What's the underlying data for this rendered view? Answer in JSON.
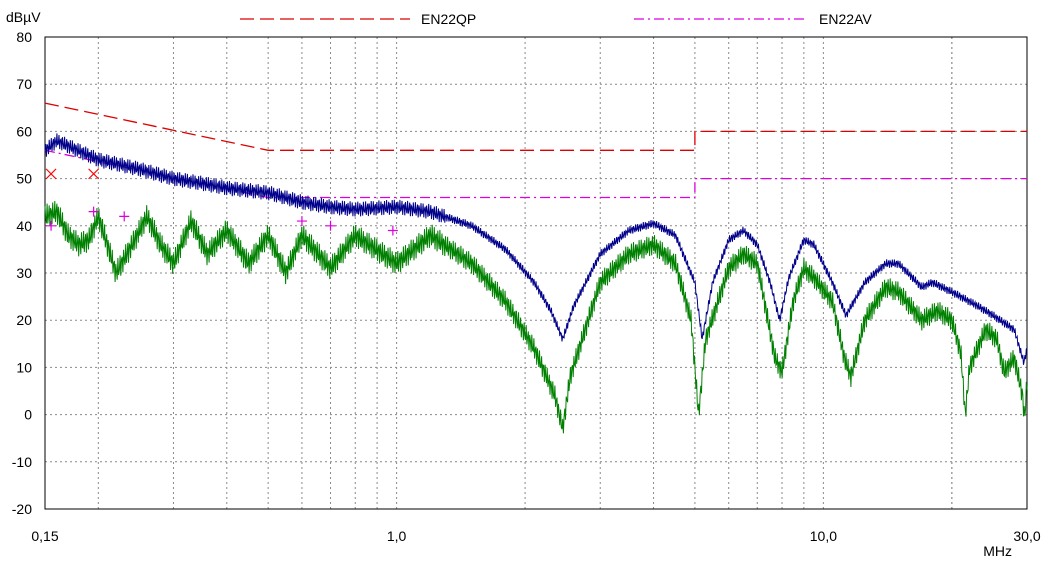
{
  "chart_data": {
    "type": "line",
    "ylabel": "dBµV",
    "xlabel": "MHz",
    "x_scale": "log",
    "xlim": [
      0.15,
      30
    ],
    "ylim": [
      -20,
      80
    ],
    "grid": true,
    "legend_placement": "top",
    "x_ticks": [
      {
        "value": 0.15,
        "label": "0,15"
      },
      {
        "value": 1,
        "label": "1,0"
      },
      {
        "value": 10,
        "label": "10,0"
      },
      {
        "value": 30,
        "label": "30,0"
      }
    ],
    "y_ticks": [
      {
        "value": 80,
        "label": "80"
      },
      {
        "value": 70,
        "label": "70"
      },
      {
        "value": 60,
        "label": "60"
      },
      {
        "value": 50,
        "label": "50"
      },
      {
        "value": 40,
        "label": "40"
      },
      {
        "value": 30,
        "label": "30"
      },
      {
        "value": 20,
        "label": "20"
      },
      {
        "value": 10,
        "label": "10"
      },
      {
        "value": 0,
        "label": "0"
      },
      {
        "value": -10,
        "label": "-10"
      },
      {
        "value": -20,
        "label": "-20"
      }
    ],
    "limit_lines": [
      {
        "name": "EN22QP",
        "color": "#dd0000",
        "style": "dashed",
        "points": [
          [
            0.15,
            66
          ],
          [
            0.5,
            56
          ],
          [
            5,
            56
          ],
          [
            5,
            60
          ],
          [
            30,
            60
          ]
        ]
      },
      {
        "name": "EN22AV",
        "color": "#dd00dd",
        "style": "dash-dot",
        "points": [
          [
            0.15,
            56
          ],
          [
            0.5,
            46
          ],
          [
            5,
            46
          ],
          [
            5,
            50
          ],
          [
            30,
            50
          ]
        ]
      }
    ],
    "series": [
      {
        "color": "#00008b",
        "points": [
          [
            0.15,
            56
          ],
          [
            0.16,
            58
          ],
          [
            0.2,
            54
          ],
          [
            0.25,
            52
          ],
          [
            0.3,
            50
          ],
          [
            0.35,
            49
          ],
          [
            0.4,
            48
          ],
          [
            0.5,
            47
          ],
          [
            0.6,
            45
          ],
          [
            0.7,
            44
          ],
          [
            0.8,
            43.5
          ],
          [
            1.0,
            44
          ],
          [
            1.2,
            43
          ],
          [
            1.5,
            40
          ],
          [
            1.8,
            35
          ],
          [
            2.1,
            28
          ],
          [
            2.3,
            22
          ],
          [
            2.45,
            16
          ],
          [
            2.6,
            23
          ],
          [
            3.0,
            34
          ],
          [
            3.5,
            39
          ],
          [
            4.0,
            40.5
          ],
          [
            4.5,
            38
          ],
          [
            5.0,
            28
          ],
          [
            5.2,
            16
          ],
          [
            5.5,
            28
          ],
          [
            6.0,
            37
          ],
          [
            6.5,
            39
          ],
          [
            7.0,
            36
          ],
          [
            7.5,
            28
          ],
          [
            7.9,
            20
          ],
          [
            8.3,
            29
          ],
          [
            9.0,
            37
          ],
          [
            9.5,
            36
          ],
          [
            10.5,
            28
          ],
          [
            11.3,
            21
          ],
          [
            12.5,
            28
          ],
          [
            14.0,
            32
          ],
          [
            15.0,
            32
          ],
          [
            17.0,
            27
          ],
          [
            18.0,
            28
          ],
          [
            20.0,
            26
          ],
          [
            23.0,
            23
          ],
          [
            25.0,
            21
          ],
          [
            28.0,
            18
          ],
          [
            29.5,
            11
          ],
          [
            30.0,
            14
          ]
        ]
      },
      {
        "color": "#008000",
        "points": [
          [
            0.15,
            42
          ],
          [
            0.16,
            43
          ],
          [
            0.17,
            38
          ],
          [
            0.18,
            36
          ],
          [
            0.19,
            37
          ],
          [
            0.2,
            42
          ],
          [
            0.21,
            36
          ],
          [
            0.22,
            30
          ],
          [
            0.24,
            36
          ],
          [
            0.26,
            42
          ],
          [
            0.28,
            36
          ],
          [
            0.3,
            32
          ],
          [
            0.33,
            41
          ],
          [
            0.36,
            34
          ],
          [
            0.4,
            39
          ],
          [
            0.45,
            32
          ],
          [
            0.5,
            38
          ],
          [
            0.55,
            30
          ],
          [
            0.6,
            38
          ],
          [
            0.7,
            31
          ],
          [
            0.8,
            38
          ],
          [
            1.0,
            32
          ],
          [
            1.2,
            38
          ],
          [
            1.5,
            32
          ],
          [
            1.8,
            24
          ],
          [
            2.1,
            14
          ],
          [
            2.35,
            4
          ],
          [
            2.45,
            -3
          ],
          [
            2.55,
            8
          ],
          [
            3.0,
            28
          ],
          [
            3.5,
            34
          ],
          [
            4.0,
            36
          ],
          [
            4.5,
            32
          ],
          [
            4.9,
            20
          ],
          [
            5.1,
            0
          ],
          [
            5.3,
            16
          ],
          [
            6.0,
            31
          ],
          [
            6.5,
            34
          ],
          [
            7.0,
            32
          ],
          [
            7.7,
            12
          ],
          [
            8.0,
            9
          ],
          [
            8.5,
            24
          ],
          [
            9.0,
            31
          ],
          [
            9.5,
            29
          ],
          [
            10.5,
            24
          ],
          [
            11.2,
            12
          ],
          [
            11.6,
            8
          ],
          [
            12.5,
            20
          ],
          [
            14.0,
            27
          ],
          [
            15.0,
            26
          ],
          [
            17.0,
            20
          ],
          [
            18.5,
            22
          ],
          [
            20.0,
            20
          ],
          [
            21.0,
            13
          ],
          [
            21.5,
            0
          ],
          [
            22.0,
            10
          ],
          [
            24.0,
            18
          ],
          [
            25.5,
            16
          ],
          [
            26.5,
            9
          ],
          [
            28.0,
            12
          ],
          [
            29.3,
            4
          ],
          [
            29.6,
            -1
          ],
          [
            30.0,
            7
          ]
        ]
      }
    ],
    "markers": [
      {
        "color": "#ff0000",
        "shape": "x",
        "points": [
          [
            0.155,
            51
          ],
          [
            0.195,
            51
          ]
        ]
      },
      {
        "color": "#dd00dd",
        "shape": "+",
        "points": [
          [
            0.155,
            40
          ],
          [
            0.195,
            43
          ],
          [
            0.23,
            42
          ],
          [
            0.6,
            41
          ],
          [
            0.7,
            40
          ],
          [
            0.98,
            39
          ]
        ]
      }
    ]
  }
}
